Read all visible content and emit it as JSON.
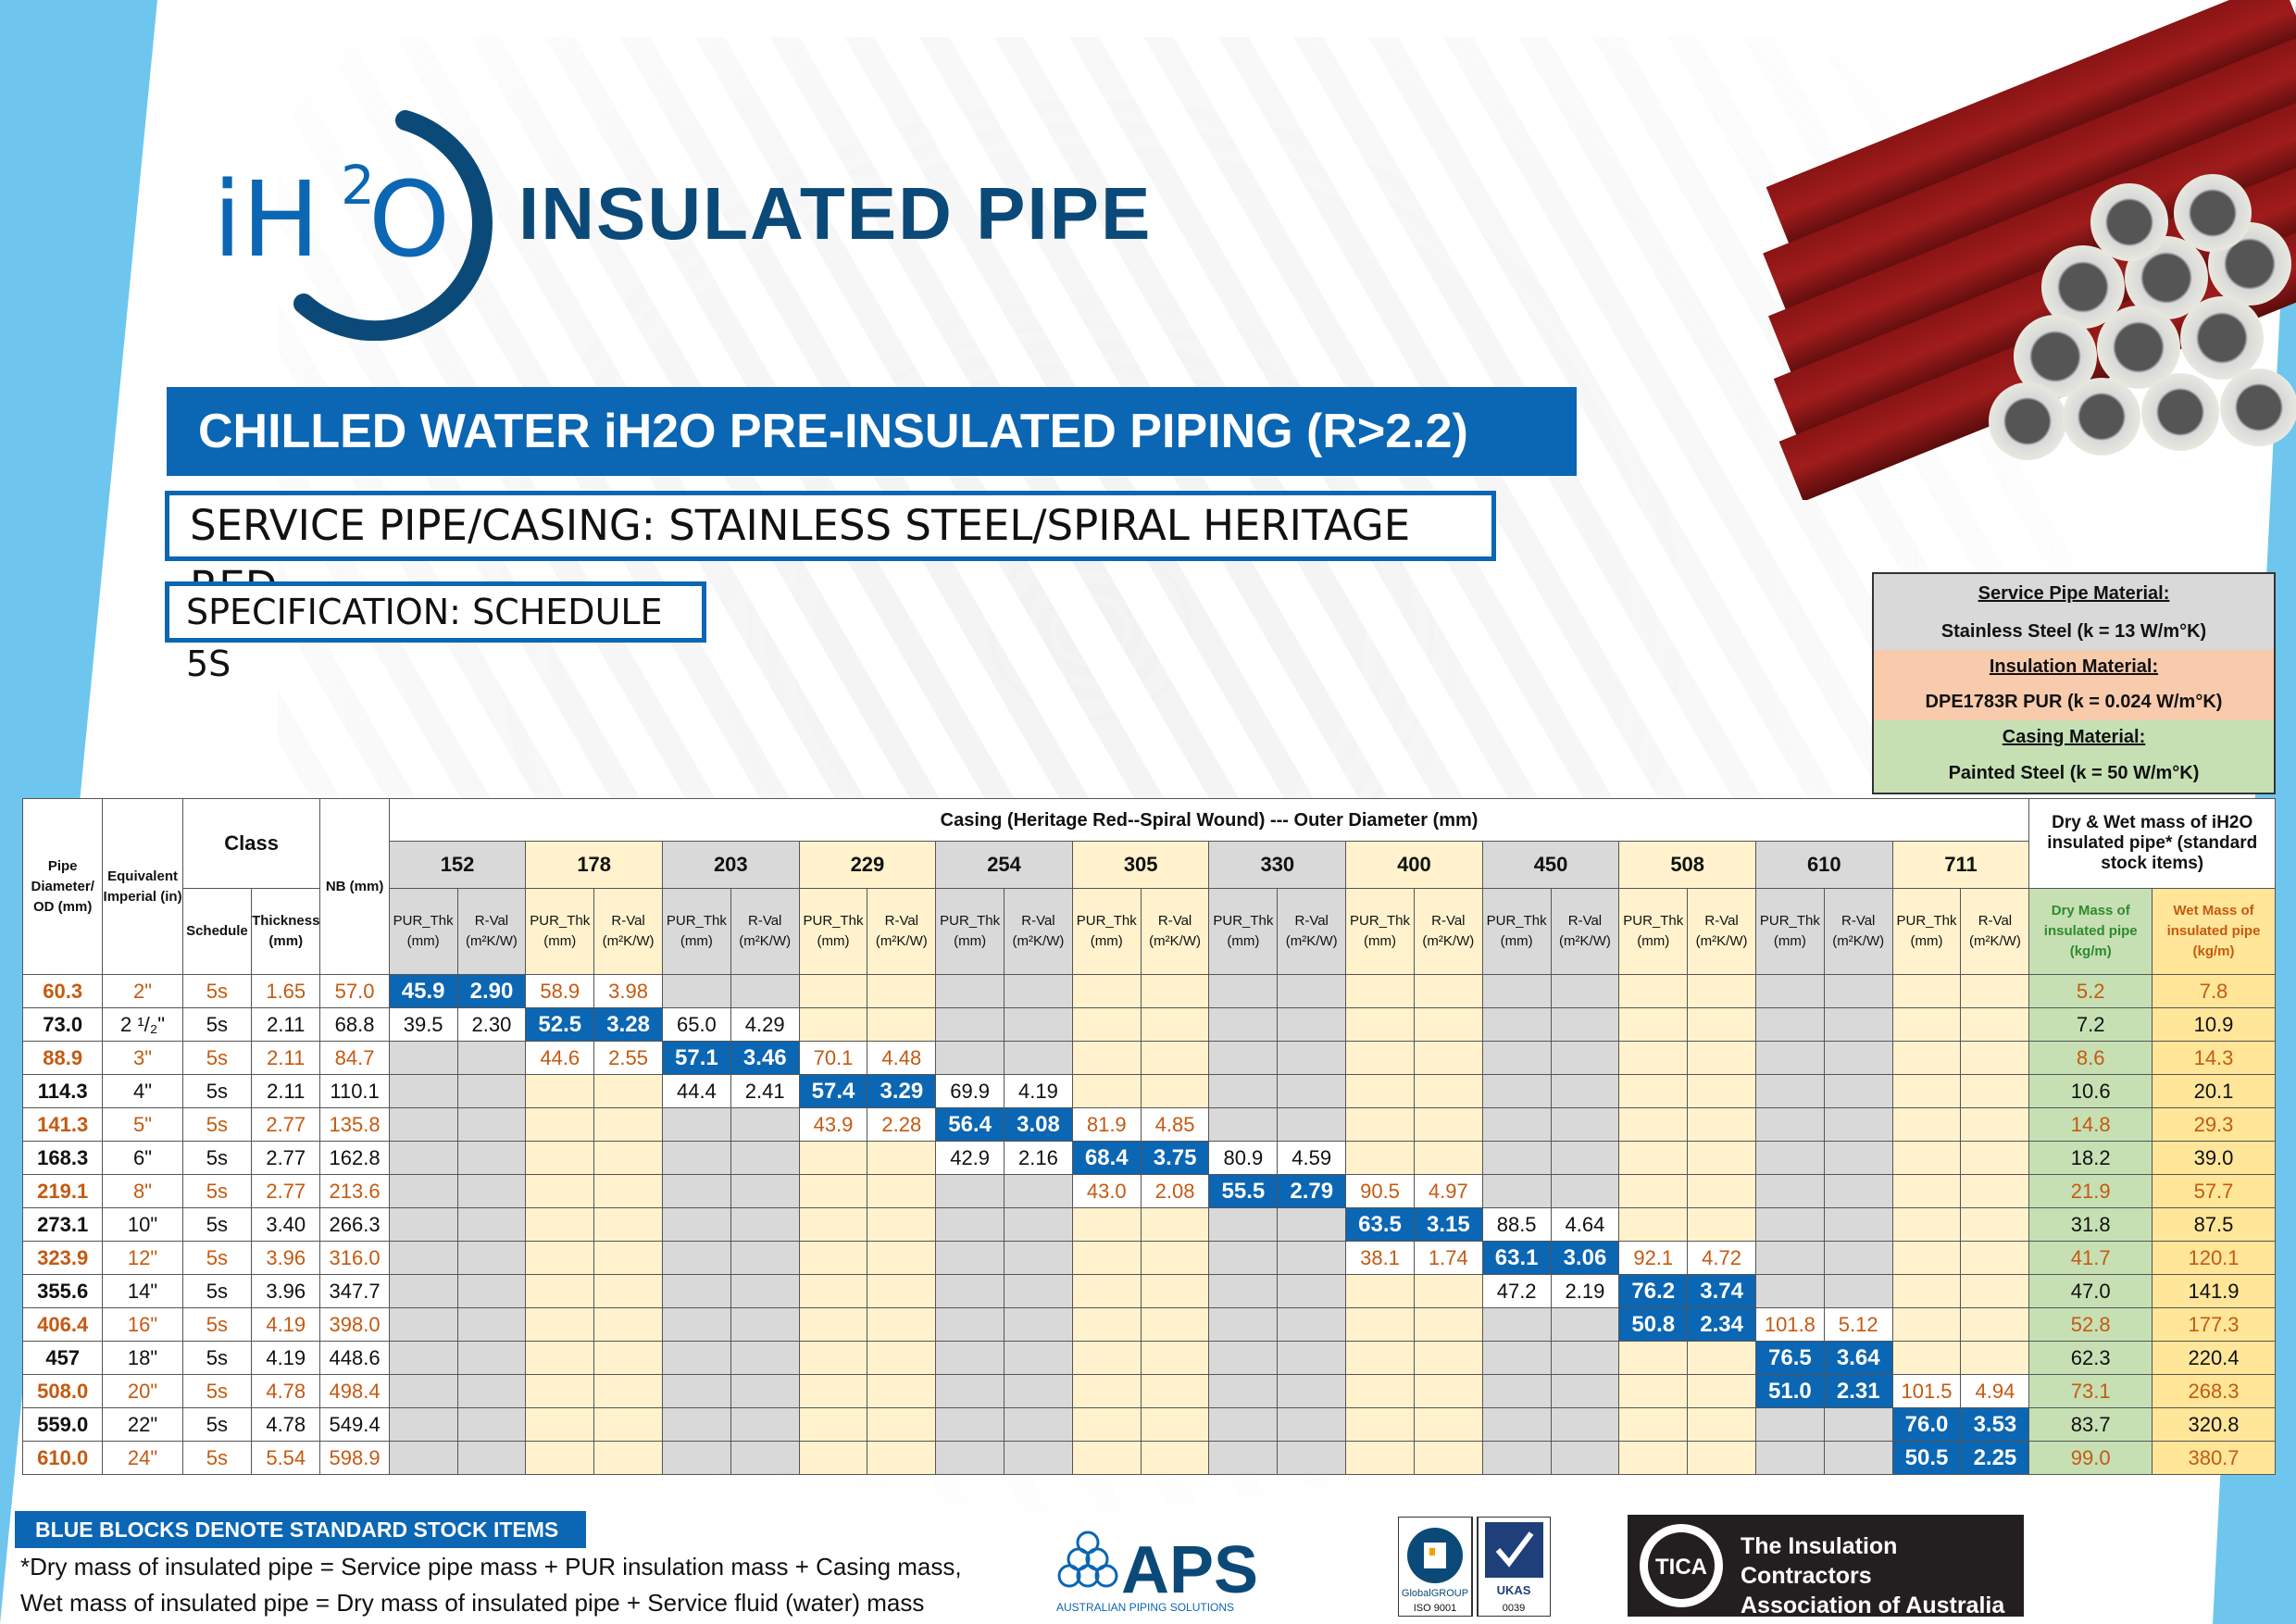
{
  "brand": {
    "logo_i": "iH",
    "logo_sup": "2",
    "logo_o": "O",
    "title": "INSULATED PIPE"
  },
  "headline": "CHILLED WATER iH2O PRE-INSULATED PIPING (R>2.2)",
  "service_casing": "SERVICE PIPE/CASING: STAINLESS STEEL/SPIRAL HERITAGE RED",
  "specification": "SPECIFICATION: SCHEDULE 5S",
  "materials": {
    "service_label": "Service Pipe Material:",
    "service_value": "Stainless Steel     (k = 13 W/m°K)",
    "insulation_label": "Insulation Material:",
    "insulation_value": "DPE1783R PUR     (k = 0.024 W/m°K)",
    "casing_label": "Casing Material:",
    "casing_value": "Painted Steel     (k = 50 W/m°K)"
  },
  "table": {
    "col_pipe": "Pipe Diameter/ OD (mm)",
    "col_imperial": "Equivalent Imperial (in)",
    "col_class": "Class",
    "col_schedule": "Schedule",
    "col_thickness": "Thickness (mm)",
    "col_nb": "NB (mm)",
    "casing_title": "Casing (Heritage Red--Spiral Wound) --- Outer Diameter (mm)",
    "mass_title": "Dry & Wet mass of iH2O insulated pipe* (standard stock items)",
    "pur_label": "PUR_Thk (mm)",
    "rval_label": "R-Val (m²K/W)",
    "dry_label": "Dry Mass of insulated pipe (kg/m)",
    "wet_label": "Wet Mass of insulated pipe (kg/m)",
    "casings": [
      "152",
      "178",
      "203",
      "229",
      "254",
      "305",
      "330",
      "400",
      "450",
      "508",
      "610",
      "711"
    ],
    "rows": [
      {
        "od": "60.3",
        "imp": "2\"",
        "sch": "5s",
        "thk": "1.65",
        "nb": "57.0",
        "start": 0,
        "vals": [
          [
            "45.9",
            "2.90"
          ],
          [
            "58.9",
            "3.98"
          ]
        ],
        "blue": 0,
        "dry": "5.2",
        "wet": "7.8"
      },
      {
        "od": "73.0",
        "imp": "2 ¹/₂\"",
        "sch": "5s",
        "thk": "2.11",
        "nb": "68.8",
        "start": 0,
        "vals": [
          [
            "39.5",
            "2.30"
          ],
          [
            "52.5",
            "3.28"
          ],
          [
            "65.0",
            "4.29"
          ]
        ],
        "blue": 1,
        "dry": "7.2",
        "wet": "10.9"
      },
      {
        "od": "88.9",
        "imp": "3\"",
        "sch": "5s",
        "thk": "2.11",
        "nb": "84.7",
        "start": 1,
        "vals": [
          [
            "44.6",
            "2.55"
          ],
          [
            "57.1",
            "3.46"
          ],
          [
            "70.1",
            "4.48"
          ]
        ],
        "blue": 1,
        "dry": "8.6",
        "wet": "14.3"
      },
      {
        "od": "114.3",
        "imp": "4\"",
        "sch": "5s",
        "thk": "2.11",
        "nb": "110.1",
        "start": 2,
        "vals": [
          [
            "44.4",
            "2.41"
          ],
          [
            "57.4",
            "3.29"
          ],
          [
            "69.9",
            "4.19"
          ]
        ],
        "blue": 1,
        "dry": "10.6",
        "wet": "20.1"
      },
      {
        "od": "141.3",
        "imp": "5\"",
        "sch": "5s",
        "thk": "2.77",
        "nb": "135.8",
        "start": 3,
        "vals": [
          [
            "43.9",
            "2.28"
          ],
          [
            "56.4",
            "3.08"
          ],
          [
            "81.9",
            "4.85"
          ]
        ],
        "blue": 1,
        "dry": "14.8",
        "wet": "29.3"
      },
      {
        "od": "168.3",
        "imp": "6\"",
        "sch": "5s",
        "thk": "2.77",
        "nb": "162.8",
        "start": 4,
        "vals": [
          [
            "42.9",
            "2.16"
          ],
          [
            "68.4",
            "3.75"
          ],
          [
            "80.9",
            "4.59"
          ]
        ],
        "blue": 1,
        "dry": "18.2",
        "wet": "39.0"
      },
      {
        "od": "219.1",
        "imp": "8\"",
        "sch": "5s",
        "thk": "2.77",
        "nb": "213.6",
        "start": 5,
        "vals": [
          [
            "43.0",
            "2.08"
          ],
          [
            "55.5",
            "2.79"
          ],
          [
            "90.5",
            "4.97"
          ]
        ],
        "blue": 1,
        "dry": "21.9",
        "wet": "57.7"
      },
      {
        "od": "273.1",
        "imp": "10\"",
        "sch": "5s",
        "thk": "3.40",
        "nb": "266.3",
        "start": 7,
        "vals": [
          [
            "63.5",
            "3.15"
          ],
          [
            "88.5",
            "4.64"
          ]
        ],
        "blue": 0,
        "dry": "31.8",
        "wet": "87.5"
      },
      {
        "od": "323.9",
        "imp": "12\"",
        "sch": "5s",
        "thk": "3.96",
        "nb": "316.0",
        "start": 7,
        "vals": [
          [
            "38.1",
            "1.74"
          ],
          [
            "63.1",
            "3.06"
          ],
          [
            "92.1",
            "4.72"
          ]
        ],
        "blue": 1,
        "dry": "41.7",
        "wet": "120.1"
      },
      {
        "od": "355.6",
        "imp": "14\"",
        "sch": "5s",
        "thk": "3.96",
        "nb": "347.7",
        "start": 8,
        "vals": [
          [
            "47.2",
            "2.19"
          ],
          [
            "76.2",
            "3.74"
          ]
        ],
        "blue": 1,
        "dry": "47.0",
        "wet": "141.9"
      },
      {
        "od": "406.4",
        "imp": "16\"",
        "sch": "5s",
        "thk": "4.19",
        "nb": "398.0",
        "start": 9,
        "vals": [
          [
            "50.8",
            "2.34"
          ],
          [
            "101.8",
            "5.12"
          ]
        ],
        "blue": 0,
        "dry": "52.8",
        "wet": "177.3"
      },
      {
        "od": "457",
        "imp": "18\"",
        "sch": "5s",
        "thk": "4.19",
        "nb": "448.6",
        "start": 10,
        "vals": [
          [
            "76.5",
            "3.64"
          ]
        ],
        "blue": 0,
        "dry": "62.3",
        "wet": "220.4"
      },
      {
        "od": "508.0",
        "imp": "20\"",
        "sch": "5s",
        "thk": "4.78",
        "nb": "498.4",
        "start": 10,
        "vals": [
          [
            "51.0",
            "2.31"
          ],
          [
            "101.5",
            "4.94"
          ]
        ],
        "blue": 0,
        "dry": "73.1",
        "wet": "268.3"
      },
      {
        "od": "559.0",
        "imp": "22\"",
        "sch": "5s",
        "thk": "4.78",
        "nb": "549.4",
        "start": 11,
        "vals": [
          [
            "76.0",
            "3.53"
          ]
        ],
        "blue": 0,
        "dry": "83.7",
        "wet": "320.8"
      },
      {
        "od": "610.0",
        "imp": "24\"",
        "sch": "5s",
        "thk": "5.54",
        "nb": "598.9",
        "start": 11,
        "vals": [
          [
            "50.5",
            "2.25"
          ]
        ],
        "blue": 0,
        "dry": "99.0",
        "wet": "380.7"
      }
    ]
  },
  "footer": {
    "banner": "BLUE BLOCKS DENOTE STANDARD STOCK ITEMS",
    "note1": "*Dry mass of insulated pipe = Service pipe mass + PUR insulation mass + Casing mass,",
    "note2": "Wet mass of insulated pipe = Dry mass of insulated pipe + Service fluid (water) mass"
  },
  "logos": {
    "aps_name": "APS",
    "aps_tagline": "AUSTRALIAN PIPING SOLUTIONS",
    "iso_left": "GlobalGROUP",
    "iso_left_sub": "ISO 9001",
    "iso_right": "UKAS",
    "iso_right_sub": "0039",
    "tica_line1": "The Insulation Contractors",
    "tica_line2": "Association of Australia",
    "tica_badge": "TICA"
  },
  "colors": {
    "brand_blue": "#0b66b3",
    "dark_blue": "#0b4a78",
    "accent_orange": "#c55a11",
    "sky": "#6ec6ee"
  }
}
